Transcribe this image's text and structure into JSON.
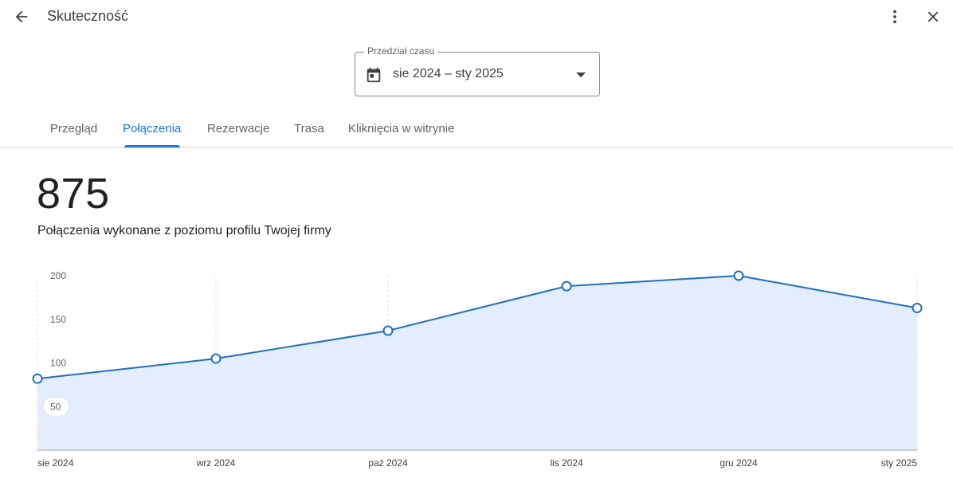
{
  "header": {
    "title": "Skuteczność",
    "back_icon": "arrow-back-icon",
    "more_icon": "more-vert-icon",
    "close_icon": "close-icon"
  },
  "date_range": {
    "legend": "Przedział czasu",
    "value": "sie 2024 – sty 2025",
    "icon": "calendar-icon"
  },
  "tabs": [
    {
      "label": "Przegląd",
      "active": false
    },
    {
      "label": "Połączenia",
      "active": true
    },
    {
      "label": "Rezerwacje",
      "active": false
    },
    {
      "label": "Trasa",
      "active": false
    },
    {
      "label": "Kliknięcia w witrynie",
      "active": false
    }
  ],
  "metric": {
    "value": "875",
    "description": "Połączenia wykonane z poziomu profilu Twojej firmy"
  },
  "colors": {
    "accent": "#1a73e8",
    "line": "#1f6fc5",
    "area": "#e3edfb"
  },
  "chart_data": {
    "type": "area",
    "categories": [
      "sie 2024",
      "wrz 2024",
      "paź 2024",
      "lis 2024",
      "gru 2024",
      "sty 2025"
    ],
    "values": [
      82,
      105,
      137,
      188,
      200,
      163
    ],
    "yticks": [
      50,
      100,
      150,
      200
    ],
    "ylim": [
      0,
      200
    ],
    "grid": "vertical-dashed",
    "title": "",
    "xlabel": "",
    "ylabel": ""
  }
}
